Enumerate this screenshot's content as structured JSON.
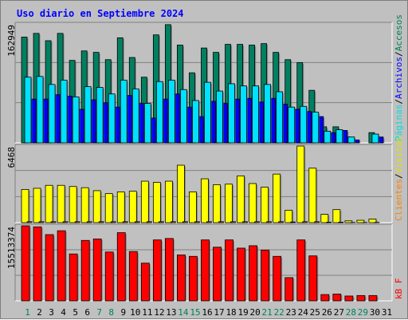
{
  "chart_data": {
    "type": "bar",
    "title": "Uso diario en Septiembre 2024",
    "days": [
      "1",
      "2",
      "3",
      "4",
      "5",
      "6",
      "7",
      "8",
      "9",
      "10",
      "11",
      "12",
      "13",
      "14",
      "15",
      "16",
      "17",
      "18",
      "19",
      "20",
      "21",
      "22",
      "23",
      "24",
      "25",
      "26",
      "27",
      "28",
      "29",
      "30",
      "31"
    ],
    "weekend_days": [
      "1",
      "7",
      "8",
      "14",
      "15",
      "21",
      "22",
      "28",
      "29"
    ],
    "panels": [
      {
        "name": "top",
        "max_label": "162949",
        "ymax": 162949,
        "side_legend": [
          {
            "text": "Accesos",
            "color": "#00805c"
          },
          {
            "text": "/",
            "color": "#000000"
          },
          {
            "text": "Archivos",
            "color": "#0000ff"
          },
          {
            "text": "/",
            "color": "#000000"
          },
          {
            "text": "Páginas",
            "color": "#00e0e0"
          }
        ],
        "series": [
          {
            "name": "Accesos",
            "color": "#008060",
            "values": [
              145000,
              150000,
              140000,
              150000,
              113000,
              126000,
              124000,
              114000,
              144000,
              117000,
              90000,
              148000,
              162000,
              134000,
              96000,
              130000,
              124000,
              135000,
              135000,
              134000,
              136000,
              124000,
              114000,
              110000,
              72000,
              22000,
              22000,
              8000,
              0,
              14000,
              0
            ]
          },
          {
            "name": "Archivos",
            "color": "#0000ff",
            "values": [
              60000,
              60000,
              66000,
              64000,
              46000,
              59000,
              55000,
              49000,
              65000,
              54000,
              34000,
              60000,
              67000,
              49000,
              36000,
              57000,
              54000,
              60000,
              61000,
              56000,
              61000,
              53000,
              46000,
              43000,
              36000,
              14000,
              17000,
              4000,
              0,
              8000,
              0
            ]
          },
          {
            "name": "Páginas",
            "color": "#00e0ff",
            "values": [
              90000,
              91000,
              80000,
              86000,
              63000,
              77000,
              76000,
              67000,
              86000,
              74000,
              54000,
              84000,
              86000,
              73000,
              58000,
              83000,
              71000,
              81000,
              78000,
              78000,
              80000,
              70000,
              49000,
              50000,
              42000,
              16000,
              18000,
              8000,
              0,
              12000,
              0
            ]
          }
        ]
      },
      {
        "name": "middle",
        "max_label": "6468",
        "ymax": 6468,
        "side_legend": [
          {
            "text": "Visitas",
            "color": "#e0e000"
          },
          {
            "text": "/",
            "color": "#000000"
          },
          {
            "text": "Clientes",
            "color": "#ff8000"
          }
        ],
        "series": [
          {
            "name": "Visitas",
            "color": "#ffff00",
            "values": [
              2800,
              2900,
              3150,
              3150,
              3050,
              2950,
              2700,
              2450,
              2600,
              2650,
              3500,
              3400,
              3500,
              4850,
              2600,
              3700,
              3200,
              3250,
              3950,
              3300,
              3000,
              4100,
              1050,
              6468,
              4600,
              700,
              1100,
              150,
              200,
              300,
              0
            ]
          },
          {
            "name": "Clientes",
            "color": "#ff8000",
            "values": [
              80,
              80,
              80,
              80,
              80,
              80,
              80,
              80,
              80,
              80,
              80,
              80,
              80,
              80,
              80,
              80,
              80,
              80,
              80,
              80,
              80,
              80,
              60,
              80,
              80,
              40,
              40,
              10,
              10,
              20,
              0
            ]
          }
        ]
      },
      {
        "name": "bottom",
        "max_label": "15513374",
        "ymax": 15513374,
        "side_legend": [
          {
            "text": "kB F",
            "color": "#ff0000"
          }
        ],
        "series": [
          {
            "name": "kB F",
            "color": "#ff0000",
            "values": [
              15513374,
              15300000,
              13700000,
              14500000,
              9700000,
              12500000,
              12800000,
              10100000,
              14100000,
              10200000,
              7800000,
              12600000,
              12900000,
              9500000,
              9200000,
              12600000,
              11100000,
              12600000,
              10900000,
              11400000,
              10500000,
              9200000,
              4800000,
              12600000,
              9300000,
              1300000,
              1400000,
              1000000,
              1100000,
              1100000,
              0
            ]
          }
        ]
      }
    ]
  }
}
